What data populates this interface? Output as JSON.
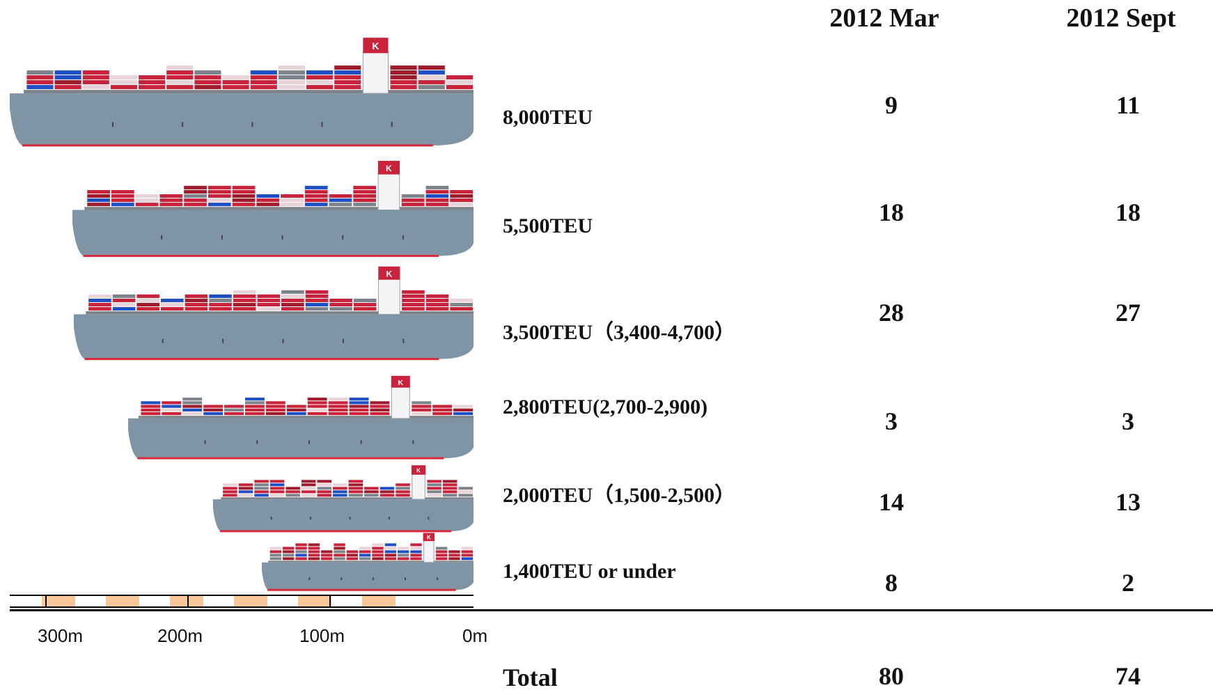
{
  "columns": [
    "2012 Mar",
    "2012 Sept"
  ],
  "rows": [
    {
      "label": "8,000TEU",
      "mar": "9",
      "sept": "11"
    },
    {
      "label": "5,500TEU",
      "mar": "18",
      "sept": "18"
    },
    {
      "label": "3,500TEU（3,400-4,700）",
      "mar": "28",
      "sept": "27"
    },
    {
      "label": "2,800TEU(2,700-2,900)",
      "mar": "3",
      "sept": "3"
    },
    {
      "label": "2,000TEU（1,500-2,500）",
      "mar": "14",
      "sept": "13"
    },
    {
      "label": "1,400TEU or under",
      "mar": "8",
      "sept": "2"
    }
  ],
  "total": {
    "label": "Total",
    "mar": "80",
    "sept": "74"
  },
  "scale": {
    "labels": [
      "300m",
      "200m",
      "100m",
      "0m"
    ]
  },
  "funnel_logo": "K",
  "colors": {
    "container_red": "#c8233a",
    "container_dark_red": "#9e1c2c",
    "container_gray": "#7d838a",
    "container_light": "#e8d4d8",
    "container_blue": "#1f4fc4",
    "hull": "#7f95a6",
    "hull_line": "#d82a3a",
    "scale_block": "#f7c79a"
  }
}
